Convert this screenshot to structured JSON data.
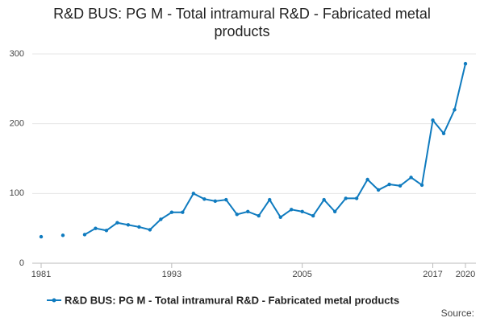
{
  "chart_data": {
    "type": "line",
    "title": "R&D BUS: PG M - Total intramural R&D - Fabricated metal products",
    "x": [
      1981,
      1982,
      1983,
      1984,
      1985,
      1986,
      1987,
      1988,
      1989,
      1990,
      1991,
      1992,
      1993,
      1994,
      1995,
      1996,
      1997,
      1998,
      1999,
      2000,
      2001,
      2002,
      2003,
      2004,
      2005,
      2006,
      2007,
      2008,
      2009,
      2010,
      2011,
      2012,
      2013,
      2014,
      2015,
      2016,
      2017,
      2018,
      2019,
      2020
    ],
    "series": [
      {
        "name": "R&D BUS: PG M - Total intramural R&D - Fabricated metal products",
        "color": "#0f7bbf",
        "values": [
          38,
          null,
          40,
          null,
          41,
          50,
          47,
          58,
          55,
          52,
          48,
          63,
          73,
          73,
          100,
          92,
          89,
          91,
          70,
          74,
          68,
          91,
          66,
          77,
          74,
          68,
          91,
          74,
          93,
          93,
          120,
          105,
          113,
          111,
          123,
          112,
          205,
          186,
          220,
          286
        ]
      }
    ],
    "xlim": [
      1981,
      2020
    ],
    "xticks": [
      1981,
      1993,
      2005,
      2017,
      2020
    ],
    "ylim": [
      0,
      300
    ],
    "yticks": [
      0,
      100,
      200,
      300
    ],
    "grid": true,
    "source": "Source:"
  }
}
